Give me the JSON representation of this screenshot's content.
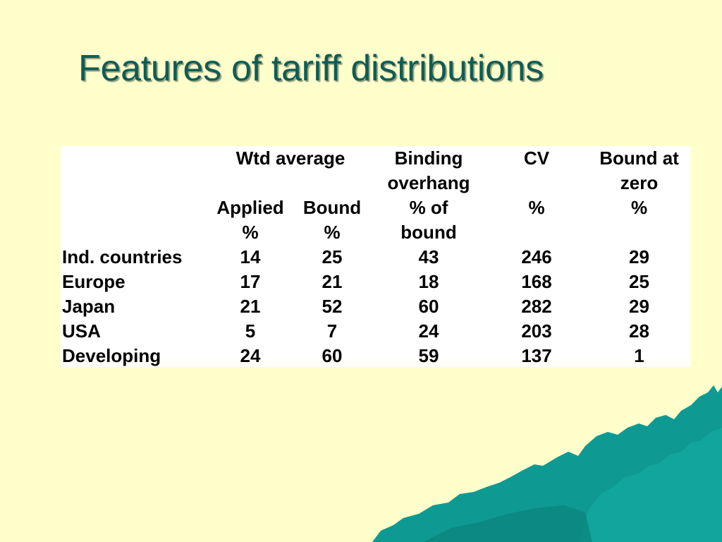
{
  "slide": {
    "title": "Features of tariff distributions"
  },
  "table": {
    "header": {
      "wtd_average": "Wtd average",
      "binding_1": "Binding",
      "binding_2": "overhang",
      "binding_3": "% of",
      "binding_4": "bound",
      "cv_1": "CV",
      "cv_2": "%",
      "zero_1": "Bound at",
      "zero_2": "zero",
      "zero_3": "%",
      "applied_1": "Applied",
      "applied_2": "%",
      "bound_1": "Bound",
      "bound_2": "%"
    },
    "rows": [
      {
        "label": "Ind. countries",
        "applied": "14",
        "bound": "25",
        "overhang": "43",
        "cv": "246",
        "zero": "29"
      },
      {
        "label": "Europe",
        "applied": "17",
        "bound": "21",
        "overhang": "18",
        "cv": "168",
        "zero": "25"
      },
      {
        "label": "Japan",
        "applied": "21",
        "bound": "52",
        "overhang": "60",
        "cv": "282",
        "zero": "29"
      },
      {
        "label": "USA",
        "applied": "5",
        "bound": "7",
        "overhang": "24",
        "cv": "203",
        "zero": "28"
      },
      {
        "label": "Developing",
        "applied": "24",
        "bound": "60",
        "overhang": "59",
        "cv": "137",
        "zero": "1"
      }
    ]
  },
  "colors": {
    "background": "#FFFFCC",
    "title": "#0F5C56",
    "landscape": "#0E9A93"
  }
}
